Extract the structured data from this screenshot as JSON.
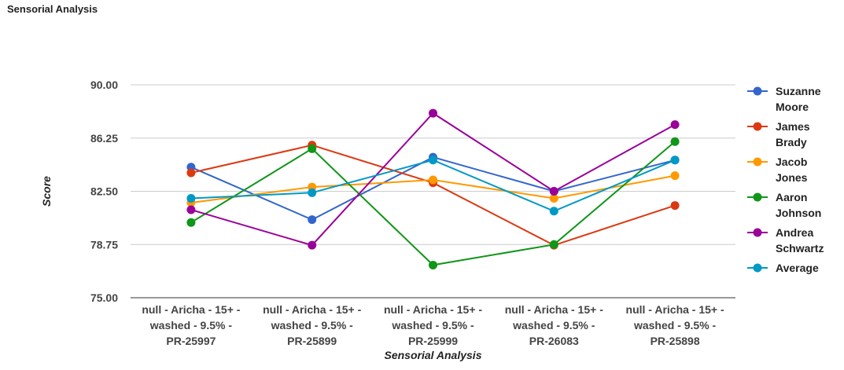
{
  "page": {
    "title": "Sensorial Analysis"
  },
  "chart_data": {
    "type": "line",
    "title": "",
    "xlabel": "Sensorial Analysis",
    "ylabel": "Score",
    "ylim": [
      75,
      90
    ],
    "yticks": [
      "90.00",
      "86.25",
      "82.50",
      "78.75",
      "75.00"
    ],
    "ytick_values": [
      90,
      86.25,
      82.5,
      78.75,
      75
    ],
    "grid": true,
    "legend_position": "right",
    "categories": [
      "null - Aricha - 15+ - washed - 9.5% - PR-25997",
      "null - Aricha - 15+ - washed - 9.5% - PR-25899",
      "null - Aricha - 15+ - washed - 9.5% - PR-25999",
      "null - Aricha - 15+ - washed - 9.5% - PR-26083",
      "null - Aricha - 15+ - washed - 9.5% - PR-25898"
    ],
    "category_lines": [
      [
        "null - Aricha - 15+ -",
        "washed - 9.5% -",
        "PR-25997"
      ],
      [
        "null - Aricha - 15+ -",
        "washed - 9.5% -",
        "PR-25899"
      ],
      [
        "null - Aricha - 15+ -",
        "washed - 9.5% -",
        "PR-25999"
      ],
      [
        "null - Aricha - 15+ -",
        "washed - 9.5% -",
        "PR-26083"
      ],
      [
        "null - Aricha - 15+ -",
        "washed - 9.5% -",
        "PR-25898"
      ]
    ],
    "series": [
      {
        "name": "Suzanne Moore",
        "legend_lines": [
          "Suzanne",
          "Moore"
        ],
        "color": "#3366cc",
        "values": [
          84.2,
          80.5,
          84.9,
          82.5,
          84.7
        ]
      },
      {
        "name": "James Brady",
        "legend_lines": [
          "James",
          "Brady"
        ],
        "color": "#dc3912",
        "values": [
          83.8,
          85.75,
          83.1,
          78.7,
          81.5
        ]
      },
      {
        "name": "Jacob Jones",
        "legend_lines": [
          "Jacob",
          "Jones"
        ],
        "color": "#ff9900",
        "values": [
          81.7,
          82.8,
          83.3,
          82.0,
          83.6
        ]
      },
      {
        "name": "Aaron Johnson",
        "legend_lines": [
          "Aaron",
          "Johnson"
        ],
        "color": "#109618",
        "values": [
          80.3,
          85.5,
          77.3,
          78.75,
          86.0
        ]
      },
      {
        "name": "Andrea Schwartz",
        "legend_lines": [
          "Andrea",
          "Schwartz"
        ],
        "color": "#990099",
        "values": [
          81.2,
          78.7,
          88.0,
          82.5,
          87.2
        ]
      },
      {
        "name": "Average",
        "legend_lines": [
          "Average"
        ],
        "color": "#0099c6",
        "values": [
          82.0,
          82.4,
          84.7,
          81.1,
          84.7
        ]
      }
    ]
  }
}
